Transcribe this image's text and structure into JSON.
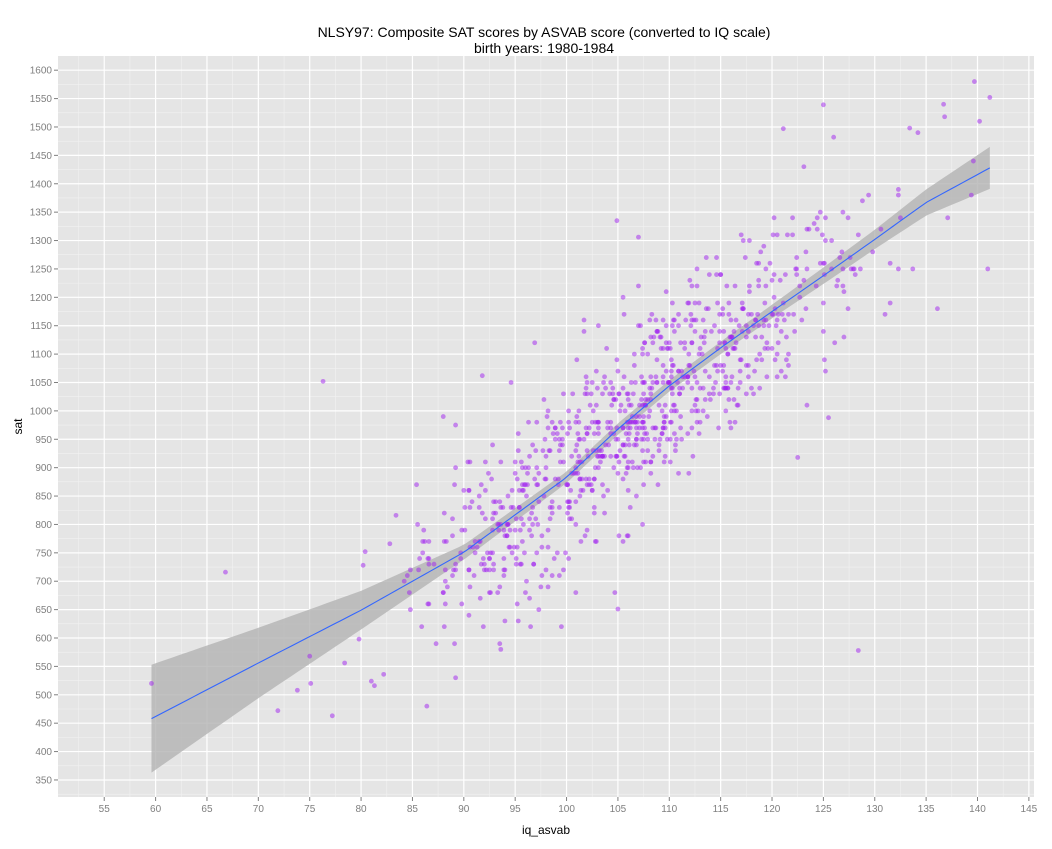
{
  "chart_data": {
    "type": "scatter",
    "title": "NLSY97: Composite SAT scores by ASVAB score (converted to IQ scale)",
    "subtitle": "birth years: 1980-1984",
    "xlabel": "iq_asvab",
    "ylabel": "sat",
    "xlim": [
      50.5,
      145.5
    ],
    "ylim": [
      320,
      1625
    ],
    "x_ticks": [
      55,
      60,
      65,
      70,
      75,
      80,
      85,
      90,
      95,
      100,
      105,
      110,
      115,
      120,
      125,
      130,
      135,
      140,
      145
    ],
    "y_ticks": [
      350,
      400,
      450,
      500,
      550,
      600,
      650,
      700,
      750,
      800,
      850,
      900,
      950,
      1000,
      1050,
      1100,
      1150,
      1200,
      1250,
      1300,
      1350,
      1400,
      1450,
      1500,
      1550,
      1600
    ],
    "grid": true,
    "point_color": "#a020f0",
    "fit_line_color": "#3366ff",
    "ribbon_color": "#b3b3b3",
    "panel_color": "#e5e5e5",
    "point_count_generated": 900,
    "points_notable": [
      {
        "x": 59.6,
        "y": 520
      },
      {
        "x": 66.8,
        "y": 716
      },
      {
        "x": 71.9,
        "y": 472
      },
      {
        "x": 73.8,
        "y": 508
      },
      {
        "x": 75.0,
        "y": 568
      },
      {
        "x": 75.1,
        "y": 520
      },
      {
        "x": 76.3,
        "y": 1052
      },
      {
        "x": 77.2,
        "y": 463
      },
      {
        "x": 78.4,
        "y": 556
      },
      {
        "x": 79.8,
        "y": 598
      },
      {
        "x": 80.2,
        "y": 728
      },
      {
        "x": 80.4,
        "y": 752
      },
      {
        "x": 81.0,
        "y": 524
      },
      {
        "x": 81.3,
        "y": 516
      },
      {
        "x": 82.2,
        "y": 536
      },
      {
        "x": 82.8,
        "y": 766
      },
      {
        "x": 83.4,
        "y": 816
      },
      {
        "x": 85.4,
        "y": 870
      },
      {
        "x": 88.0,
        "y": 990
      },
      {
        "x": 89.2,
        "y": 975
      },
      {
        "x": 91.8,
        "y": 1062
      },
      {
        "x": 99.5,
        "y": 620
      },
      {
        "x": 105.0,
        "y": 651
      },
      {
        "x": 104.9,
        "y": 1335
      },
      {
        "x": 107.0,
        "y": 1306
      },
      {
        "x": 121.1,
        "y": 1497
      },
      {
        "x": 122.5,
        "y": 918
      },
      {
        "x": 125.0,
        "y": 1539
      },
      {
        "x": 125.5,
        "y": 988
      },
      {
        "x": 126.0,
        "y": 1482
      },
      {
        "x": 128.4,
        "y": 578
      },
      {
        "x": 133.4,
        "y": 1498
      },
      {
        "x": 136.8,
        "y": 1518
      },
      {
        "x": 139.7,
        "y": 1580
      },
      {
        "x": 141.2,
        "y": 1552
      },
      {
        "x": 141.0,
        "y": 1250
      }
    ],
    "fit_line": [
      {
        "x": 59.6,
        "y": 458
      },
      {
        "x": 70,
        "y": 556
      },
      {
        "x": 80,
        "y": 649
      },
      {
        "x": 90,
        "y": 751
      },
      {
        "x": 100,
        "y": 883
      },
      {
        "x": 105,
        "y": 968
      },
      {
        "x": 110,
        "y": 1044
      },
      {
        "x": 115,
        "y": 1111
      },
      {
        "x": 120,
        "y": 1175
      },
      {
        "x": 125,
        "y": 1238
      },
      {
        "x": 130,
        "y": 1302
      },
      {
        "x": 135,
        "y": 1367
      },
      {
        "x": 141.2,
        "y": 1428
      }
    ],
    "ribbon_halfwidth": [
      {
        "x": 59.6,
        "hw": 95
      },
      {
        "x": 70,
        "hw": 62
      },
      {
        "x": 80,
        "hw": 34
      },
      {
        "x": 90,
        "hw": 13
      },
      {
        "x": 100,
        "hw": 10
      },
      {
        "x": 110,
        "hw": 10
      },
      {
        "x": 120,
        "hw": 12
      },
      {
        "x": 130,
        "hw": 17
      },
      {
        "x": 135,
        "hw": 23
      },
      {
        "x": 141.2,
        "hw": 37
      }
    ]
  }
}
